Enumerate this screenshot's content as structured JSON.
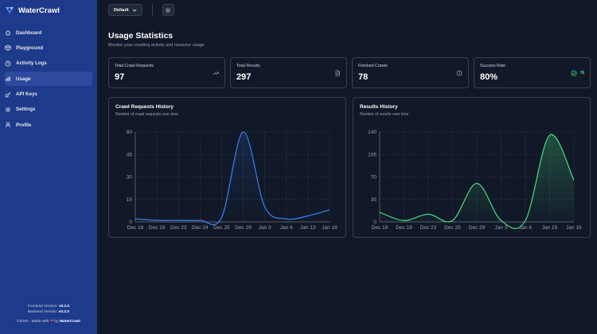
{
  "brand": {
    "name": "WaterCrawl"
  },
  "sidebar": {
    "items": [
      {
        "label": "Dashboard",
        "icon": "home-icon",
        "active": false
      },
      {
        "label": "Playground",
        "icon": "cube-icon",
        "active": false
      },
      {
        "label": "Activity Logs",
        "icon": "clock-icon",
        "active": false
      },
      {
        "label": "Usage",
        "icon": "bar-chart-icon",
        "active": true
      },
      {
        "label": "API Keys",
        "icon": "key-icon",
        "active": false
      },
      {
        "label": "Settings",
        "icon": "gear-icon",
        "active": false
      },
      {
        "label": "Profile",
        "icon": "user-icon",
        "active": false
      }
    ],
    "footer": {
      "frontend_label": "Frontend Version:",
      "frontend_version": "v0.2.0",
      "backend_label": "Backend Version:",
      "backend_version": "v0.2.0",
      "made_prefix": "©2025 - Made with",
      "made_by": "by",
      "made_name": "WaterCrawl"
    }
  },
  "topbar": {
    "team_select": "Default"
  },
  "page": {
    "title": "Usage Statistics",
    "subtitle": "Monitor your crawling activity and resource usage"
  },
  "stats": [
    {
      "label": "Total Crawl Requests",
      "value": "97",
      "icon": "trending-up-icon"
    },
    {
      "label": "Total Results",
      "value": "297",
      "icon": "document-icon"
    },
    {
      "label": "Finished Crawls",
      "value": "78",
      "icon": "clock-icon"
    },
    {
      "label": "Success Rate",
      "value": "80%",
      "icon": "check-circle-icon",
      "badge": "78",
      "badge_color": "#4ade80"
    }
  ],
  "chart_data": [
    {
      "type": "line",
      "title": "Crawl Requests History",
      "subtitle": "Number of crawl requests over time",
      "color": "#3b82f6",
      "x": [
        "Dec 18",
        "Dec 19",
        "Dec 23",
        "Dec 24",
        "Dec 25",
        "Dec 29",
        "Jan 3",
        "Jan 6",
        "Jan 13",
        "Jan 16"
      ],
      "values": [
        2,
        1,
        1,
        1,
        3,
        60,
        10,
        2,
        4,
        8
      ],
      "yticks": [
        0,
        15,
        30,
        45,
        60
      ],
      "ylim": [
        0,
        60
      ],
      "grid": true
    },
    {
      "type": "area",
      "title": "Results History",
      "subtitle": "Number of results over time",
      "color": "#4ade80",
      "x": [
        "Dec 18",
        "Dec 19",
        "Dec 23",
        "Dec 25",
        "Dec 29",
        "Jan 3",
        "Jan 6",
        "Jan 15",
        "Jan 16"
      ],
      "values": [
        15,
        2,
        12,
        2,
        60,
        2,
        2,
        135,
        65
      ],
      "yticks": [
        0,
        35,
        70,
        105,
        140
      ],
      "ylim": [
        0,
        140
      ],
      "grid": true
    }
  ]
}
